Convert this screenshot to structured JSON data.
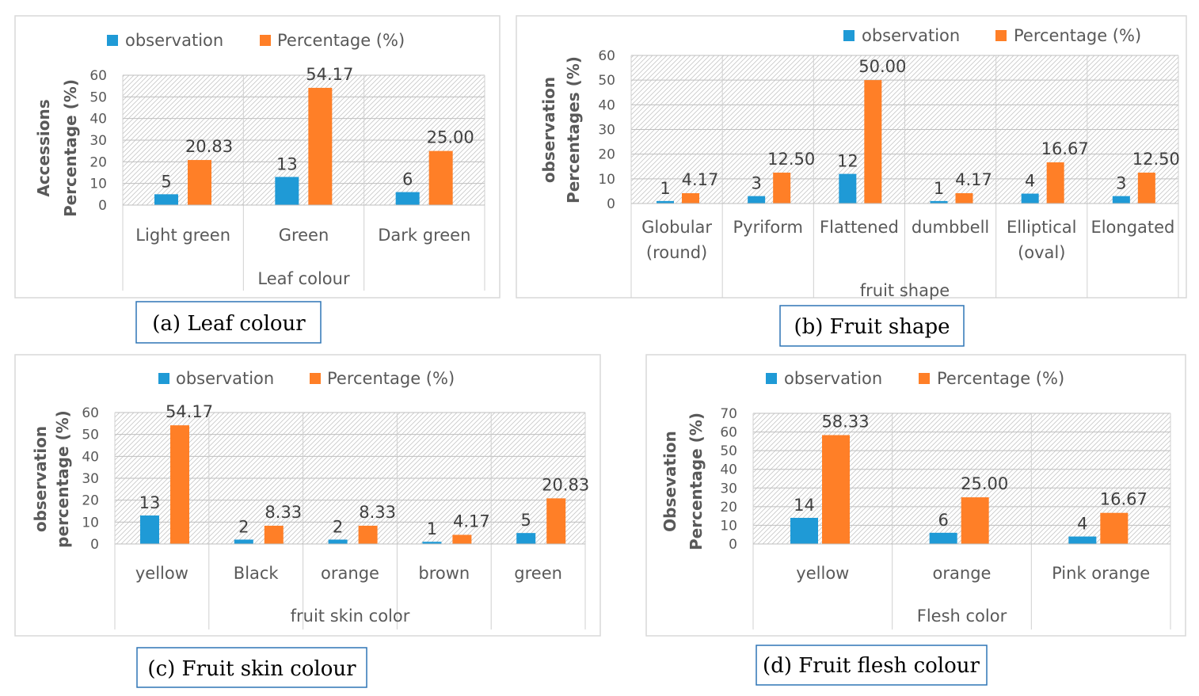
{
  "colors": {
    "observation": "#1f9ad6",
    "percentage": "#ff7f27",
    "text": "#595959",
    "frame": "#d9d9d9",
    "caption_border": "#2e75b6"
  },
  "chart_data": [
    {
      "type": "bar",
      "title": "",
      "legend": [
        "observation",
        "Percentage (%)"
      ],
      "legend_position": "top",
      "categories": [
        [
          "Light green"
        ],
        [
          "Green"
        ],
        [
          "Dark green"
        ]
      ],
      "series": [
        {
          "name": "observation",
          "values": [
            5,
            13,
            6
          ],
          "labels": [
            "5",
            "13",
            "6"
          ]
        },
        {
          "name": "Percentage (%)",
          "values": [
            20.83,
            54.17,
            25.0
          ],
          "labels": [
            "20.83",
            "54.17",
            "25.00"
          ]
        }
      ],
      "xlabel": "Leaf colour",
      "ylabel": [
        "Accessions",
        "Percentage (%)"
      ],
      "ylim": [
        0,
        60
      ],
      "yticks": [
        "0",
        "10",
        "20",
        "30",
        "40",
        "50",
        "60"
      ],
      "caption": "(a) Leaf colour"
    },
    {
      "type": "bar",
      "title": "",
      "legend": [
        "observation",
        "Percentage (%)"
      ],
      "legend_position": "top-right",
      "categories": [
        [
          "Globular",
          "(round)"
        ],
        [
          "Pyriform"
        ],
        [
          "Flattened"
        ],
        [
          "dumbbell"
        ],
        [
          "Elliptical",
          "(oval)"
        ],
        [
          "Elongated"
        ]
      ],
      "series": [
        {
          "name": "observation",
          "values": [
            1,
            3,
            12,
            1,
            4,
            3
          ],
          "labels": [
            "1",
            "3",
            "12",
            "1",
            "4",
            "3"
          ]
        },
        {
          "name": "Percentage (%)",
          "values": [
            4.17,
            12.5,
            50.0,
            4.17,
            16.67,
            12.5
          ],
          "labels": [
            "4.17",
            "12.50",
            "50.00",
            "4.17",
            "16.67",
            "12.50"
          ]
        }
      ],
      "xlabel": "fruit shape",
      "ylabel": [
        "observation",
        "Percentages (%)"
      ],
      "ylim": [
        0,
        60
      ],
      "yticks": [
        "0",
        "10",
        "20",
        "30",
        "40",
        "50",
        "60"
      ],
      "caption": "(b) Fruit shape"
    },
    {
      "type": "bar",
      "title": "",
      "legend": [
        "observation",
        "Percentage (%)"
      ],
      "legend_position": "top",
      "categories": [
        [
          "yellow"
        ],
        [
          "Black"
        ],
        [
          "orange"
        ],
        [
          "brown"
        ],
        [
          "green"
        ]
      ],
      "series": [
        {
          "name": "observation",
          "values": [
            13,
            2,
            2,
            1,
            5
          ],
          "labels": [
            "13",
            "2",
            "2",
            "1",
            "5"
          ]
        },
        {
          "name": "Percentage (%)",
          "values": [
            54.17,
            8.33,
            8.33,
            4.17,
            20.83
          ],
          "labels": [
            "54.17",
            "8.33",
            "8.33",
            "4.17",
            "20.83"
          ]
        }
      ],
      "xlabel": "fruit skin color",
      "ylabel": [
        "observation",
        "percentage (%)"
      ],
      "ylim": [
        0,
        60
      ],
      "yticks": [
        "0",
        "10",
        "20",
        "30",
        "40",
        "50",
        "60"
      ],
      "caption": "(c) Fruit skin colour"
    },
    {
      "type": "bar",
      "title": "",
      "legend": [
        "observation",
        "Percentage (%)"
      ],
      "legend_position": "top",
      "categories": [
        [
          "yellow"
        ],
        [
          "orange"
        ],
        [
          "Pink orange"
        ]
      ],
      "series": [
        {
          "name": "observation",
          "values": [
            14,
            6,
            4
          ],
          "labels": [
            "14",
            "6",
            "4"
          ]
        },
        {
          "name": "Percentage (%)",
          "values": [
            58.33,
            25.0,
            16.67
          ],
          "labels": [
            "58.33",
            "25.00",
            "16.67"
          ]
        }
      ],
      "xlabel": "Flesh color",
      "ylabel": [
        "Obsevation",
        "Percentage (%)"
      ],
      "ylim": [
        0,
        70
      ],
      "yticks": [
        "0",
        "10",
        "20",
        "30",
        "40",
        "50",
        "60",
        "70"
      ],
      "caption": "(d) Fruit flesh colour"
    }
  ]
}
